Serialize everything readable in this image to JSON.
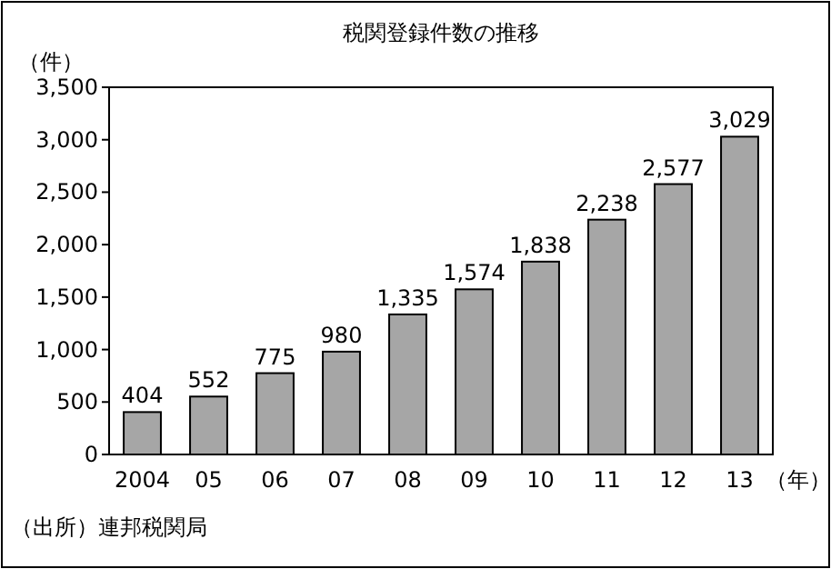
{
  "chart_data": {
    "type": "bar",
    "title": "税関登録件数の推移",
    "ylabel": "（件）",
    "xlabel": "（年）",
    "categories": [
      "2004",
      "05",
      "06",
      "07",
      "08",
      "09",
      "10",
      "11",
      "12",
      "13"
    ],
    "values": [
      404,
      552,
      775,
      980,
      1335,
      1574,
      1838,
      2238,
      2577,
      3029
    ],
    "value_labels": [
      "404",
      "552",
      "775",
      "980",
      "1,335",
      "1,574",
      "1,838",
      "2,238",
      "2,577",
      "3,029"
    ],
    "color": "#a6a6a6",
    "ylim": [
      0,
      3500
    ],
    "yticks": [
      0,
      {
        "value": 500,
        "label": "500"
      },
      {
        "value": 1000,
        "label": "1,000"
      },
      {
        "value": 1500,
        "label": "1,500"
      },
      {
        "value": 2000,
        "label": "2,000"
      },
      {
        "value": 2500,
        "label": "2,500"
      },
      {
        "value": 3000,
        "label": "3,000"
      },
      {
        "value": 3500,
        "label": "3,500"
      }
    ],
    "annotations": [
      "（出所）連邦税関局"
    ]
  }
}
